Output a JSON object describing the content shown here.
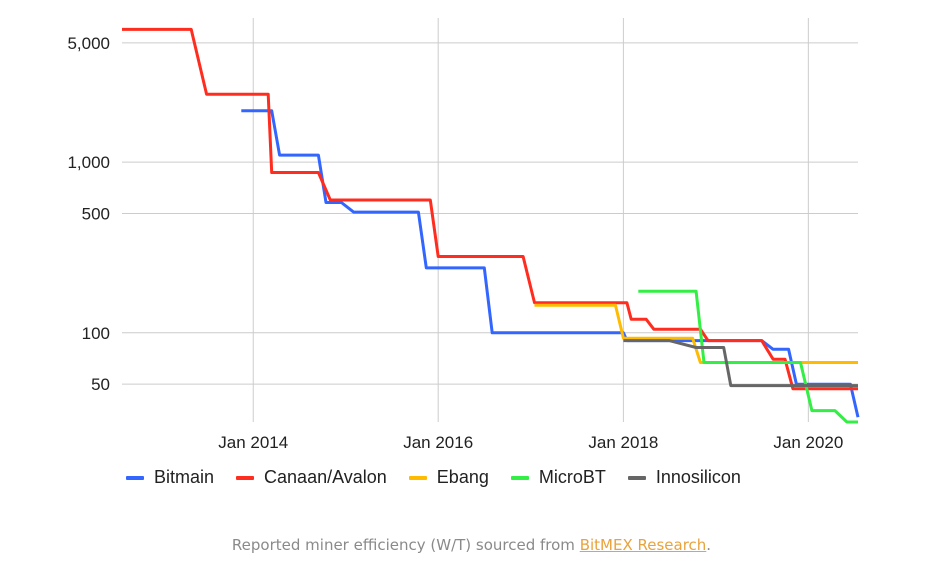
{
  "chart_data": {
    "type": "line",
    "title": "",
    "xlabel": "",
    "ylabel": "",
    "yscale": "log",
    "x_range": [
      "2012-08-01",
      "2020-07-15"
    ],
    "ylim": [
      30,
      7000
    ],
    "x_ticks": [
      "Jan 2014",
      "Jan 2016",
      "Jan 2018",
      "Jan 2020"
    ],
    "x_tick_dates": [
      "2014-01-01",
      "2016-01-01",
      "2018-01-01",
      "2020-01-01"
    ],
    "y_ticks": [
      "5,000",
      "1,000",
      "500",
      "100",
      "50"
    ],
    "y_tick_values": [
      5000,
      1000,
      500,
      100,
      50
    ],
    "grid": true,
    "legend_position": "bottom",
    "series": [
      {
        "name": "Bitmain",
        "color": "#3366ff",
        "points": [
          [
            "2013-11-15",
            2000
          ],
          [
            "2014-03-15",
            2000
          ],
          [
            "2014-04-15",
            1100
          ],
          [
            "2014-09-15",
            1100
          ],
          [
            "2014-10-15",
            580
          ],
          [
            "2014-12-15",
            580
          ],
          [
            "2015-02-01",
            510
          ],
          [
            "2015-10-15",
            510
          ],
          [
            "2015-11-15",
            240
          ],
          [
            "2016-07-01",
            240
          ],
          [
            "2016-08-01",
            100
          ],
          [
            "2018-01-01",
            100
          ],
          [
            "2018-01-15",
            90
          ],
          [
            "2019-07-01",
            90
          ],
          [
            "2019-08-15",
            80
          ],
          [
            "2019-10-15",
            80
          ],
          [
            "2019-11-15",
            50
          ],
          [
            "2020-06-15",
            50
          ],
          [
            "2020-07-15",
            32
          ]
        ]
      },
      {
        "name": "Canaan/Avalon",
        "color": "#ff2d1f",
        "points": [
          [
            "2012-08-01",
            6000
          ],
          [
            "2013-05-01",
            6000
          ],
          [
            "2013-07-01",
            2500
          ],
          [
            "2014-03-01",
            2500
          ],
          [
            "2014-03-15",
            870
          ],
          [
            "2014-09-15",
            870
          ],
          [
            "2014-11-01",
            600
          ],
          [
            "2015-12-01",
            600
          ],
          [
            "2016-01-01",
            280
          ],
          [
            "2016-12-01",
            280
          ],
          [
            "2017-01-15",
            150
          ],
          [
            "2018-01-15",
            150
          ],
          [
            "2018-02-01",
            120
          ],
          [
            "2018-04-01",
            120
          ],
          [
            "2018-05-01",
            105
          ],
          [
            "2018-11-01",
            105
          ],
          [
            "2018-12-01",
            90
          ],
          [
            "2019-07-01",
            90
          ],
          [
            "2019-08-15",
            70
          ],
          [
            "2019-10-01",
            70
          ],
          [
            "2019-11-01",
            47
          ],
          [
            "2020-07-15",
            47
          ]
        ]
      },
      {
        "name": "Ebang",
        "color": "#ffbb00",
        "points": [
          [
            "2017-01-15",
            145
          ],
          [
            "2017-12-01",
            145
          ],
          [
            "2018-01-01",
            93
          ],
          [
            "2018-10-01",
            93
          ],
          [
            "2018-11-01",
            67
          ],
          [
            "2020-07-15",
            67
          ]
        ]
      },
      {
        "name": "MicroBT",
        "color": "#33ee44",
        "points": [
          [
            "2018-03-01",
            175
          ],
          [
            "2018-10-15",
            175
          ],
          [
            "2018-11-15",
            67
          ],
          [
            "2019-12-01",
            67
          ],
          [
            "2020-01-15",
            35
          ],
          [
            "2020-04-15",
            35
          ],
          [
            "2020-06-01",
            30
          ],
          [
            "2020-07-15",
            30
          ]
        ]
      },
      {
        "name": "Innosilicon",
        "color": "#666666",
        "points": [
          [
            "2018-01-01",
            90
          ],
          [
            "2018-07-01",
            90
          ],
          [
            "2018-10-15",
            82
          ],
          [
            "2019-02-01",
            82
          ],
          [
            "2019-03-01",
            49
          ],
          [
            "2020-07-15",
            49
          ]
        ]
      }
    ]
  },
  "caption": {
    "prefix": "Reported miner efficiency (W/T) sourced from ",
    "link_text": "BitMEX Research",
    "suffix": "."
  }
}
